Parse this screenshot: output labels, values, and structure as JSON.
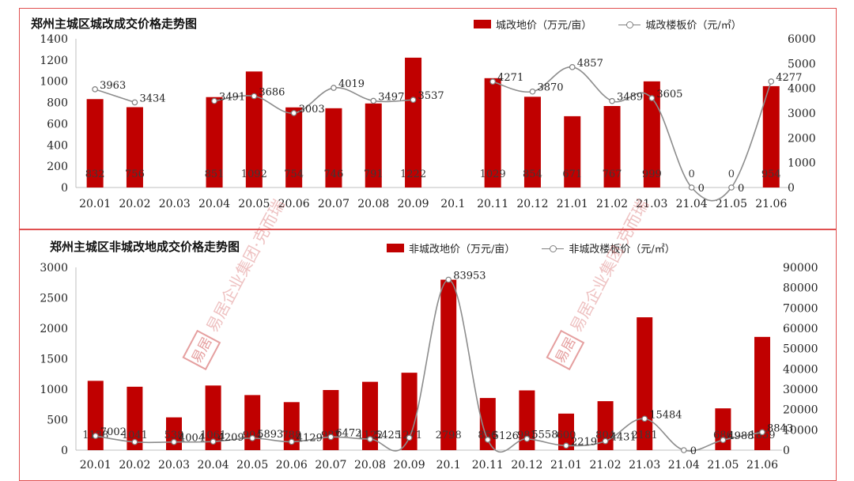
{
  "chart_data": [
    {
      "type": "bar",
      "title": "郑州主城区城改成交价格走势图",
      "categories": [
        "20.01",
        "20.02",
        "20.03",
        "20.04",
        "20.05",
        "20.06",
        "20.07",
        "20.08",
        "20.09",
        "20.1",
        "20.11",
        "20.12",
        "21.01",
        "21.02",
        "21.03",
        "21.04",
        "21.05",
        "21.06"
      ],
      "series": [
        {
          "name": "城改地价（万元/亩）",
          "type": "bar",
          "axis": "left",
          "color": "#c00000",
          "values": [
            832,
            756,
            null,
            851,
            1092,
            754,
            746,
            791,
            1222,
            null,
            1029,
            854,
            671,
            767,
            999,
            0,
            0,
            954
          ],
          "labels": [
            "832",
            "756",
            "",
            "851",
            "1092",
            "754",
            "746",
            "791",
            "1222",
            "",
            "1029",
            "854",
            "671",
            "767",
            "999",
            "0",
            "0",
            "954"
          ]
        },
        {
          "name": "城改楼板价（元/㎡）",
          "type": "line",
          "axis": "right",
          "color": "#8c8c8c",
          "values": [
            3963,
            3434,
            null,
            3491,
            3686,
            3003,
            4019,
            3497,
            3537,
            null,
            4271,
            3870,
            4857,
            3489,
            3605,
            0,
            0,
            4277
          ],
          "labels": [
            "3963",
            "3434",
            "",
            "3491",
            "3686",
            "3003",
            "4019",
            "3497",
            "3537",
            "",
            "4271",
            "3870",
            "4857",
            "3489",
            "3605",
            "0",
            "0",
            "4277"
          ]
        }
      ],
      "y_left": {
        "min": 0,
        "max": 1400,
        "step": 200,
        "ticks": [
          "0",
          "200",
          "400",
          "600",
          "800",
          "1000",
          "1200",
          "1400"
        ]
      },
      "y_right": {
        "min": 0,
        "max": 6000,
        "step": 1000,
        "ticks": [
          "0",
          "1000",
          "2000",
          "3000",
          "4000",
          "5000",
          "6000"
        ]
      },
      "grid": false,
      "legend": "top-right"
    },
    {
      "type": "bar",
      "title": "郑州主城区非城改地成交价格走势图",
      "categories": [
        "20.01",
        "20.02",
        "20.03",
        "20.04",
        "20.05",
        "20.06",
        "20.07",
        "20.08",
        "20.09",
        "20.1",
        "20.11",
        "20.12",
        "21.01",
        "21.02",
        "21.03",
        "21.04",
        "21.05",
        "21.06"
      ],
      "series": [
        {
          "name": "非城改地价（万元/亩）",
          "type": "bar",
          "axis": "left",
          "color": "#c00000",
          "values": [
            1138,
            1041,
            538,
            1061,
            904,
            788,
            987,
            1122,
            1271,
            2798,
            856,
            981,
            600,
            804,
            2181,
            0,
            686,
            1859
          ],
          "labels": [
            "1138",
            "1041",
            "538",
            "1061",
            "904",
            "788",
            "987",
            "1122",
            "1271",
            "2798",
            "856",
            "981",
            "600",
            "804",
            "2181",
            "",
            "686",
            "1859"
          ]
        },
        {
          "name": "非城改楼板价（元/㎡）",
          "type": "line",
          "axis": "right",
          "color": "#8c8c8c",
          "values": [
            7002,
            4004,
            4004,
            4209,
            5893,
            4129,
            6472,
            5425,
            6100,
            83953,
            5126,
            5558,
            2219,
            4431,
            15484,
            0,
            4988,
            8843
          ],
          "labels": [
            "7002",
            "",
            "4004",
            "4209",
            "5893",
            "4129",
            "6472",
            "5425",
            "",
            "83953",
            "5126",
            "5558",
            "2219",
            "4431",
            "15484",
            "0",
            "4988",
            "8843"
          ]
        }
      ],
      "y_left": {
        "min": 0,
        "max": 3000,
        "step": 500,
        "ticks": [
          "0",
          "500",
          "1000",
          "1500",
          "2000",
          "2500",
          "3000"
        ]
      },
      "y_right": {
        "min": 0,
        "max": 90000,
        "step": 10000,
        "ticks": [
          "0",
          "10000",
          "20000",
          "30000",
          "40000",
          "50000",
          "60000",
          "70000",
          "80000",
          "90000"
        ]
      },
      "grid": false,
      "legend": "top-right"
    }
  ],
  "watermark": {
    "text": "易居企业集团·克而瑞",
    "logo_text": "易居"
  }
}
